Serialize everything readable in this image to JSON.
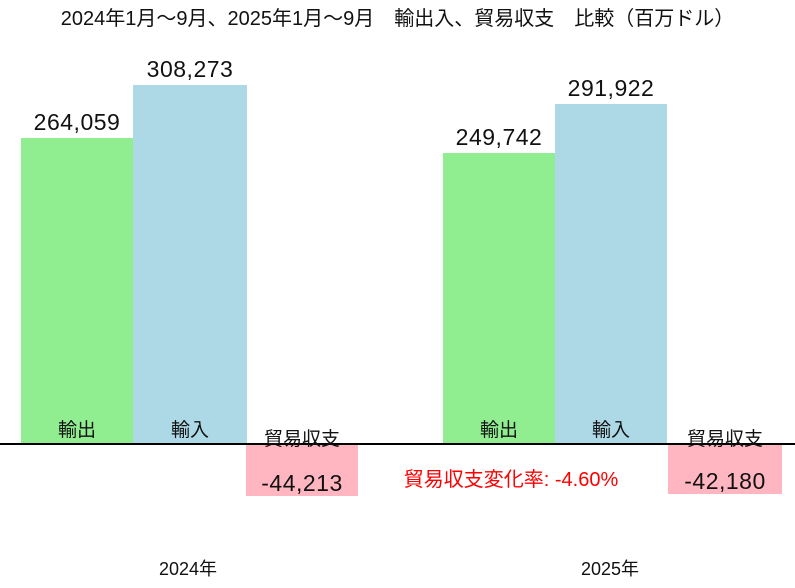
{
  "title": "2024年1月〜9月、2025年1月〜9月　輸出入、貿易収支　比較（百万ドル）",
  "annotation": {
    "label": "貿易収支変化率: -4.60%",
    "color": "#ff0000"
  },
  "colors": {
    "export_bar": "#90ee90",
    "import_bar": "#add8e6",
    "balance_bar": "#ffb6c1",
    "annotation_text": "#ff0000",
    "axis_line": "#000000",
    "background": "#ffffff"
  },
  "groups": [
    {
      "year": "2024年",
      "export_label": "輸出",
      "export_value": "264,059",
      "import_label": "輸入",
      "import_value": "308,273",
      "balance_label": "貿易収支",
      "balance_value": "-44,213"
    },
    {
      "year": "2025年",
      "export_label": "輸出",
      "export_value": "249,742",
      "import_label": "輸入",
      "import_value": "291,922",
      "balance_label": "貿易収支",
      "balance_value": "-42,180"
    }
  ],
  "chart_data": {
    "type": "bar",
    "title": "2024年1月〜9月、2025年1月〜9月　輸出入、貿易収支　比較（百万ドル）",
    "unit": "百万ドル",
    "categories": [
      "2024年",
      "2025年"
    ],
    "series": [
      {
        "name": "輸出",
        "values": [
          264059,
          249742
        ],
        "color": "#90ee90"
      },
      {
        "name": "輸入",
        "values": [
          308273,
          291922
        ],
        "color": "#add8e6"
      },
      {
        "name": "貿易収支",
        "values": [
          -44213,
          -42180
        ],
        "color": "#ffb6c1"
      }
    ],
    "annotations": [
      "貿易収支変化率: -4.60%"
    ],
    "ylim": [
      -60000,
      330000
    ],
    "baseline": 0,
    "grid": false,
    "legend_position": "none",
    "value_labels": "above-bars",
    "bar_name_labels": "inside-bottom"
  }
}
